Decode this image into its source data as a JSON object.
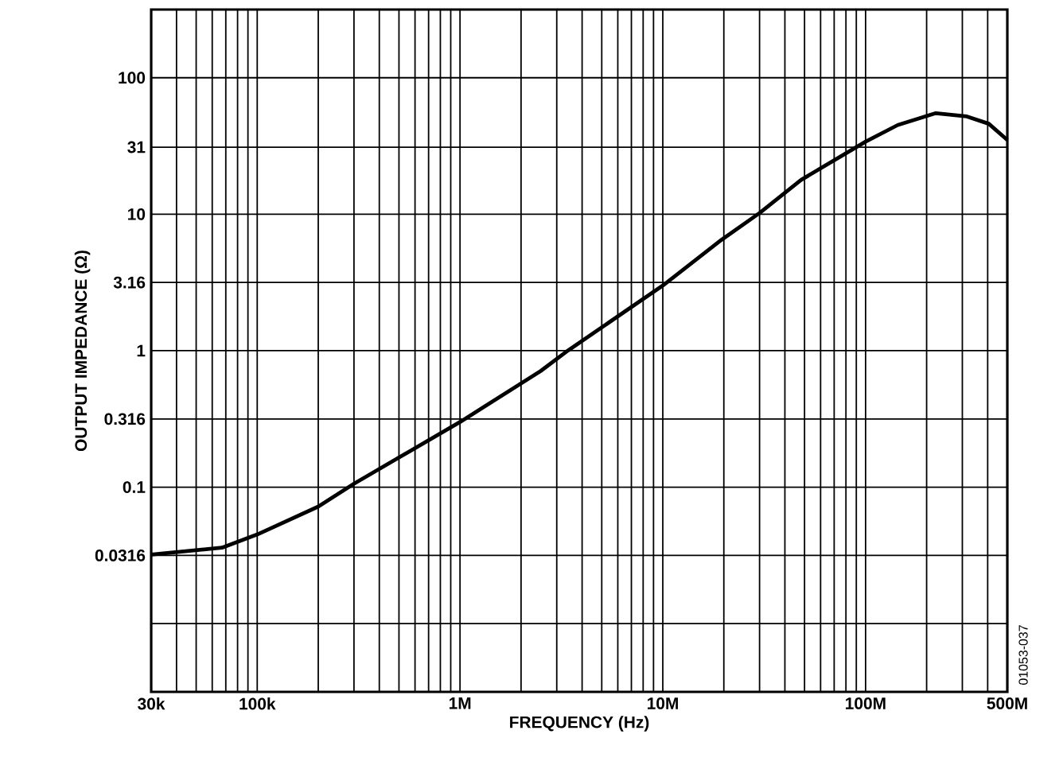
{
  "chart_data": {
    "type": "line",
    "xlabel": "FREQUENCY (Hz)",
    "ylabel": "OUTPUT IMPEDANCE (Ω)",
    "log": "xy",
    "grid": true,
    "marker": "none",
    "line_style": "solid",
    "xlim": [
      30000,
      500000000
    ],
    "ylim": [
      0.00316,
      316
    ],
    "xticks": [
      {
        "value": 30000,
        "label": "30k"
      },
      {
        "value": 40000,
        "label": null
      },
      {
        "value": 50000,
        "label": null
      },
      {
        "value": 60000,
        "label": null
      },
      {
        "value": 70000,
        "label": null
      },
      {
        "value": 80000,
        "label": null
      },
      {
        "value": 90000,
        "label": null
      },
      {
        "value": 100000,
        "label": "100k"
      },
      {
        "value": 200000,
        "label": null
      },
      {
        "value": 300000,
        "label": null
      },
      {
        "value": 400000,
        "label": null
      },
      {
        "value": 500000,
        "label": null
      },
      {
        "value": 600000,
        "label": null
      },
      {
        "value": 700000,
        "label": null
      },
      {
        "value": 800000,
        "label": null
      },
      {
        "value": 900000,
        "label": null
      },
      {
        "value": 1000000,
        "label": "1M"
      },
      {
        "value": 2000000,
        "label": null
      },
      {
        "value": 3000000,
        "label": null
      },
      {
        "value": 4000000,
        "label": null
      },
      {
        "value": 5000000,
        "label": null
      },
      {
        "value": 6000000,
        "label": null
      },
      {
        "value": 7000000,
        "label": null
      },
      {
        "value": 8000000,
        "label": null
      },
      {
        "value": 9000000,
        "label": null
      },
      {
        "value": 10000000,
        "label": "10M"
      },
      {
        "value": 20000000,
        "label": null
      },
      {
        "value": 30000000,
        "label": null
      },
      {
        "value": 40000000,
        "label": null
      },
      {
        "value": 50000000,
        "label": null
      },
      {
        "value": 60000000,
        "label": null
      },
      {
        "value": 70000000,
        "label": null
      },
      {
        "value": 80000000,
        "label": null
      },
      {
        "value": 90000000,
        "label": null
      },
      {
        "value": 100000000,
        "label": "100M"
      },
      {
        "value": 200000000,
        "label": null
      },
      {
        "value": 300000000,
        "label": null
      },
      {
        "value": 400000000,
        "label": null
      },
      {
        "value": 500000000,
        "label": "500M"
      }
    ],
    "yticks": [
      {
        "value": 0.00316,
        "label": null
      },
      {
        "value": 0.01,
        "label": null
      },
      0.0316,
      0.1,
      0.316,
      1,
      3.16,
      10,
      31,
      100,
      {
        "value": 316,
        "label": null
      }
    ],
    "x": [
      30000,
      67000,
      100000,
      200000,
      300000,
      1000000,
      2500000,
      3400000,
      10000000,
      19500000,
      30000000,
      48000000,
      100000000,
      144000000,
      222000000,
      316000000,
      405000000,
      500000000
    ],
    "series": [
      {
        "color": "#000000",
        "values": [
          0.032,
          0.036,
          0.045,
          0.072,
          0.106,
          0.3,
          0.71,
          1.0,
          3.0,
          6.5,
          10.2,
          17.8,
          34,
          45,
          55,
          52,
          46,
          35
        ]
      }
    ],
    "annotations": [
      "01053-037"
    ]
  }
}
